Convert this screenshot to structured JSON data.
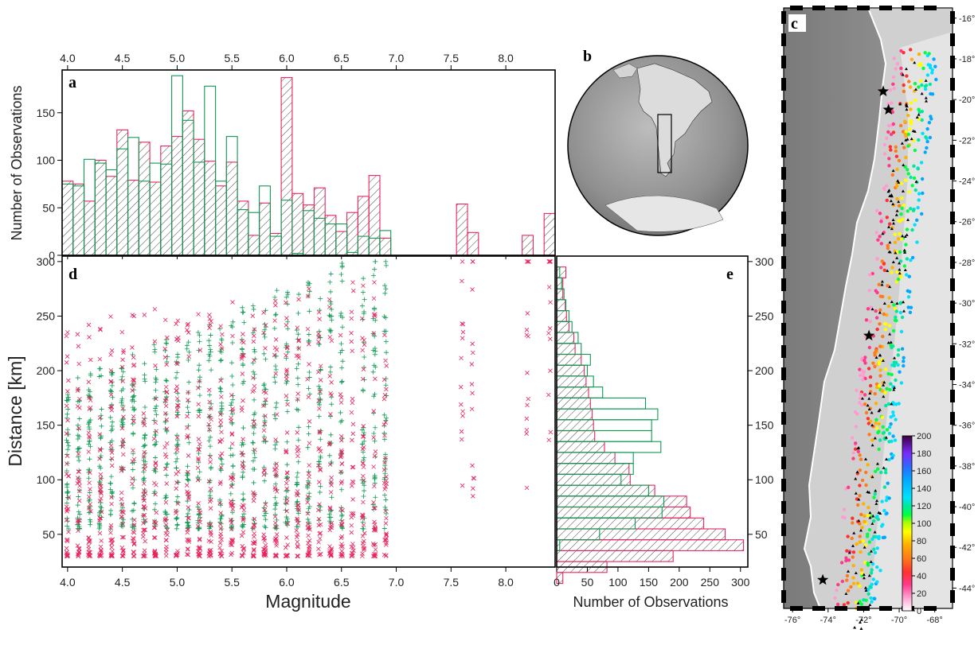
{
  "colors": {
    "pink": "#e8245c",
    "green": "#0e9a52",
    "frame": "#000000"
  },
  "chart_data": [
    {
      "panel": "a",
      "type": "bar",
      "xlim": [
        3.95,
        8.45
      ],
      "ylim": [
        0,
        195
      ],
      "x_ticks": [
        "4.0",
        "4.5",
        "5.0",
        "5.5",
        "6.0",
        "6.5",
        "7.0",
        "7.5",
        "8.0"
      ],
      "y_ticks": [
        "0",
        "50",
        "100",
        "150"
      ],
      "ylabel": "Number of Observations",
      "bin_width": 0.1,
      "bins": [
        4.0,
        4.1,
        4.2,
        4.3,
        4.4,
        4.5,
        4.6,
        4.7,
        4.8,
        4.9,
        5.0,
        5.1,
        5.2,
        5.3,
        5.4,
        5.5,
        5.6,
        5.7,
        5.8,
        5.9,
        6.0,
        6.1,
        6.2,
        6.3,
        6.4,
        6.5,
        6.6,
        6.7,
        6.8,
        6.9,
        7.6,
        7.7,
        8.2,
        8.4
      ],
      "series": [
        {
          "color": "pink",
          "hatched": true,
          "values": [
            78,
            75,
            57,
            100,
            83,
            132,
            79,
            119,
            77,
            115,
            125,
            152,
            122,
            99,
            73,
            98,
            57,
            21,
            55,
            23,
            187,
            65,
            53,
            71,
            42,
            25,
            45,
            62,
            84,
            18,
            54,
            24,
            21,
            44
          ]
        },
        {
          "color": "green",
          "hatched": false,
          "values": [
            75,
            73,
            101,
            97,
            90,
            112,
            124,
            78,
            97,
            96,
            189,
            142,
            98,
            178,
            78,
            125,
            48,
            45,
            73,
            20,
            58,
            2,
            47,
            39,
            33,
            33,
            3,
            20,
            18,
            26,
            0,
            0,
            0,
            0
          ]
        }
      ]
    },
    {
      "panel": "d",
      "type": "scatter",
      "xlabel": "Magnitude",
      "ylabel": "Distance [km]",
      "xlim": [
        3.95,
        8.45
      ],
      "ylim": [
        20,
        305
      ],
      "x_ticks": [
        "4.0",
        "4.5",
        "5.0",
        "5.5",
        "6.0",
        "6.5",
        "7.0",
        "7.5",
        "8.0"
      ],
      "y_ticks": [
        "50",
        "100",
        "150",
        "200",
        "250",
        "300"
      ],
      "series": [
        {
          "color": "green",
          "marker": "+",
          "magnitudes": [
            4.0,
            4.1,
            4.2,
            4.3,
            4.4,
            4.5,
            4.6,
            4.7,
            4.8,
            4.9,
            5.0,
            5.1,
            5.2,
            5.3,
            5.4,
            5.5,
            5.6,
            5.7,
            5.8,
            5.9,
            6.0,
            6.1,
            6.2,
            6.3,
            6.4,
            6.5,
            6.7,
            6.8,
            6.9
          ],
          "distance_range": [
            55,
            300
          ]
        },
        {
          "color": "pink",
          "marker": "x",
          "magnitudes": [
            4.0,
            4.1,
            4.2,
            4.3,
            4.4,
            4.5,
            4.6,
            4.7,
            4.8,
            4.9,
            5.0,
            5.1,
            5.2,
            5.3,
            5.4,
            5.5,
            5.6,
            5.7,
            5.8,
            5.9,
            6.0,
            6.1,
            6.2,
            6.3,
            6.4,
            6.5,
            6.6,
            6.7,
            6.8,
            6.9,
            7.6,
            7.7,
            8.2,
            8.4
          ],
          "distance_range": [
            30,
            300
          ]
        }
      ]
    },
    {
      "panel": "e",
      "type": "bar",
      "orientation": "horizontal",
      "xlabel": "Number of Observations",
      "xlim": [
        0,
        312
      ],
      "ylim": [
        20,
        305
      ],
      "x_ticks": [
        "0",
        "50",
        "100",
        "150",
        "200",
        "250",
        "300"
      ],
      "y_ticks": [
        "50",
        "100",
        "150",
        "200",
        "250",
        "300"
      ],
      "bin_width_km": 10,
      "bins_km": [
        10,
        20,
        30,
        40,
        50,
        60,
        70,
        80,
        90,
        100,
        110,
        120,
        130,
        140,
        150,
        160,
        170,
        180,
        190,
        200,
        210,
        220,
        230,
        240,
        250,
        260,
        270,
        280,
        290
      ],
      "series": [
        {
          "color": "pink",
          "hatched": true,
          "values": [
            10,
            82,
            190,
            305,
            275,
            240,
            218,
            212,
            160,
            120,
            118,
            95,
            78,
            62,
            60,
            58,
            55,
            52,
            48,
            45,
            40,
            30,
            28,
            20,
            16,
            14,
            10,
            10,
            15
          ]
        },
        {
          "color": "green",
          "hatched": false,
          "values": [
            0,
            0,
            0,
            5,
            70,
            128,
            172,
            175,
            150,
            105,
            125,
            125,
            170,
            155,
            155,
            165,
            145,
            75,
            60,
            50,
            55,
            40,
            35,
            25,
            20,
            15,
            12,
            8,
            5
          ]
        }
      ]
    },
    {
      "panel": "c",
      "type": "scatter",
      "colorbar_ticks": [
        "0",
        "20",
        "40",
        "60",
        "80",
        "100",
        "120",
        "140",
        "160",
        "180",
        "200"
      ],
      "colorbar_range": [
        0,
        200
      ],
      "lat_ticks": [
        "-16°",
        "-18°",
        "-20°",
        "-22°",
        "-24°",
        "-26°",
        "-28°",
        "-30°",
        "-32°",
        "-34°",
        "-36°",
        "-38°",
        "-40°",
        "-42°",
        "-44°"
      ],
      "lon_ticks": [
        "-76°",
        "-74°",
        "-72°",
        "-70°",
        "-68°"
      ]
    }
  ],
  "panels": {
    "a": "a",
    "b": "b",
    "c": "c",
    "d": "d",
    "e": "e"
  }
}
